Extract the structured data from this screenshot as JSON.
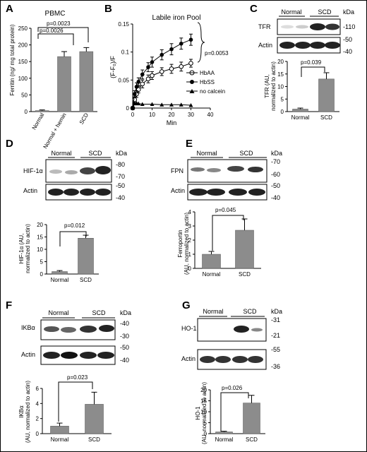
{
  "panels": {
    "A": {
      "letter": "A",
      "title": "PBMC",
      "ylabel": "Ferritin (ng/ mg total protein)",
      "p1": "p=0.0026",
      "p2": "p=0.0023",
      "categories": [
        "Normal",
        "Normal + hemin",
        "SCD"
      ]
    },
    "B": {
      "letter": "B",
      "title": "Labile iron Pool",
      "ylabel": "(F-F₀)/F",
      "xlabel": "Min",
      "pvalue": "p=0.0053",
      "legend": [
        "HbAA",
        "HbSS",
        "no calcein"
      ]
    },
    "C": {
      "letter": "C",
      "groups": [
        "Normal",
        "SCD"
      ],
      "kda": "kDa",
      "blots": [
        "TFR",
        "Actin"
      ],
      "markers": [
        "-110",
        "-50",
        "-40"
      ],
      "ylabel1": "TFR (AU,",
      "ylabel2": "normalized to actin)",
      "pvalue": "p=0.039",
      "categories": [
        "Normal",
        "SCD"
      ]
    },
    "D": {
      "letter": "D",
      "groups": [
        "Normal",
        "SCD"
      ],
      "kda": "kDa",
      "blots": [
        "HIF-1α",
        "Actin"
      ],
      "markers": [
        "-80",
        "-70",
        "-50",
        "-40"
      ],
      "ylabel1": "HIF-1α (AU,",
      "ylabel2": "normalized to actin)",
      "pvalue": "p=0.012",
      "categories": [
        "Normal",
        "SCD"
      ]
    },
    "E": {
      "letter": "E",
      "groups": [
        "Normal",
        "SCD"
      ],
      "kda": "kDa",
      "blots": [
        "FPN",
        "Actin"
      ],
      "markers": [
        "-70",
        "-60",
        "-50",
        "-40"
      ],
      "ylabel1": "Ferroportin",
      "ylabel2": "(AU, normalized to actin)",
      "pvalue": "p=0.045",
      "categories": [
        "Normal",
        "SCD"
      ]
    },
    "F": {
      "letter": "F",
      "groups": [
        "Normal",
        "SCD"
      ],
      "kda": "kDa",
      "blots": [
        "IKBα",
        "Actin"
      ],
      "markers": [
        "-40",
        "-30",
        "-50",
        "-40"
      ],
      "ylabel1": "IKBα",
      "ylabel2": "(AU, normalized to actin)",
      "pvalue": "p=0.023",
      "categories": [
        "Normal",
        "SCD"
      ]
    },
    "G": {
      "letter": "G",
      "groups": [
        "Normal",
        "SCD"
      ],
      "kda": "kDa",
      "blots": [
        "HO-1",
        "Actin"
      ],
      "markers": [
        "-31",
        "-21",
        "-55",
        "-36"
      ],
      "ylabel1": "HO-1",
      "ylabel2": "(AU, normalized to actin)",
      "pvalue": "p=0.026",
      "categories": [
        "Normal",
        "SCD"
      ]
    }
  },
  "chart_data": [
    {
      "panel": "A",
      "type": "bar",
      "categories": [
        "Normal",
        "Normal + hemin",
        "SCD"
      ],
      "values": [
        3,
        165,
        180
      ],
      "errors": [
        2,
        15,
        12
      ],
      "ylim": [
        0,
        250
      ],
      "yticks": [
        0,
        50,
        100,
        150,
        200,
        250
      ],
      "title": "PBMC",
      "xlabel": "",
      "ylabel": "Ferritin (ng/ mg total protein)"
    },
    {
      "panel": "B",
      "type": "line",
      "title": "Labile iron Pool",
      "xlabel": "Min",
      "ylabel": "(F-F₀)/F",
      "xlim": [
        0,
        40
      ],
      "ylim": [
        0,
        0.15
      ],
      "xticks": [
        0,
        10,
        20,
        30,
        40
      ],
      "yticks": [
        0,
        0.05,
        0.1,
        0.15
      ],
      "series": [
        {
          "name": "HbAA",
          "marker": "open-circle",
          "x": [
            0,
            1,
            2,
            3,
            5,
            8,
            10,
            15,
            20,
            25,
            30
          ],
          "y": [
            0.0,
            0.015,
            0.025,
            0.033,
            0.043,
            0.052,
            0.058,
            0.065,
            0.07,
            0.074,
            0.08
          ],
          "err": [
            0,
            0.005,
            0.006,
            0.006,
            0.007,
            0.007,
            0.007,
            0.007,
            0.008,
            0.008,
            0.007
          ]
        },
        {
          "name": "HbSS",
          "marker": "filled-circle",
          "x": [
            0,
            1,
            2,
            3,
            5,
            8,
            10,
            15,
            20,
            25,
            30
          ],
          "y": [
            0.0,
            0.025,
            0.038,
            0.047,
            0.06,
            0.073,
            0.082,
            0.095,
            0.105,
            0.115,
            0.122
          ],
          "err": [
            0,
            0.006,
            0.007,
            0.007,
            0.008,
            0.008,
            0.009,
            0.009,
            0.01,
            0.01,
            0.01
          ]
        },
        {
          "name": "no calcein",
          "marker": "triangle",
          "x": [
            0,
            1,
            2,
            3,
            5,
            10,
            15,
            20,
            25,
            30
          ],
          "y": [
            0.0,
            0.008,
            0.009,
            0.008,
            0.007,
            0.007,
            0.006,
            0.006,
            0.006,
            0.005
          ],
          "err": [
            0,
            0,
            0,
            0,
            0,
            0,
            0,
            0,
            0,
            0
          ]
        }
      ]
    },
    {
      "panel": "C",
      "type": "bar",
      "categories": [
        "Normal",
        "SCD"
      ],
      "values": [
        1,
        13
      ],
      "errors": [
        0.4,
        2.5
      ],
      "ylim": [
        0,
        20
      ],
      "yticks": [
        0,
        5,
        10,
        15,
        20
      ]
    },
    {
      "panel": "D",
      "type": "bar",
      "categories": [
        "Normal",
        "SCD"
      ],
      "values": [
        1,
        14.5
      ],
      "errors": [
        0.4,
        1.2
      ],
      "ylim": [
        0,
        20
      ],
      "yticks": [
        0,
        5,
        10,
        15,
        20
      ]
    },
    {
      "panel": "E",
      "type": "bar",
      "categories": [
        "Normal",
        "SCD"
      ],
      "values": [
        1,
        2.7
      ],
      "errors": [
        0.2,
        0.8
      ],
      "ylim": [
        0,
        4
      ],
      "yticks": [
        0,
        1,
        2,
        3,
        4
      ]
    },
    {
      "panel": "F",
      "type": "bar",
      "categories": [
        "Normal",
        "SCD"
      ],
      "values": [
        1,
        3.9
      ],
      "errors": [
        0.4,
        1.6
      ],
      "ylim": [
        0,
        6
      ],
      "yticks": [
        0,
        2,
        4,
        6
      ]
    },
    {
      "panel": "G",
      "type": "bar",
      "categories": [
        "Normal",
        "SCD"
      ],
      "values": [
        0.8,
        14
      ],
      "errors": [
        0.3,
        3.5
      ],
      "ylim": [
        0,
        20
      ],
      "yticks": [
        0,
        5,
        10,
        15,
        20
      ]
    }
  ]
}
